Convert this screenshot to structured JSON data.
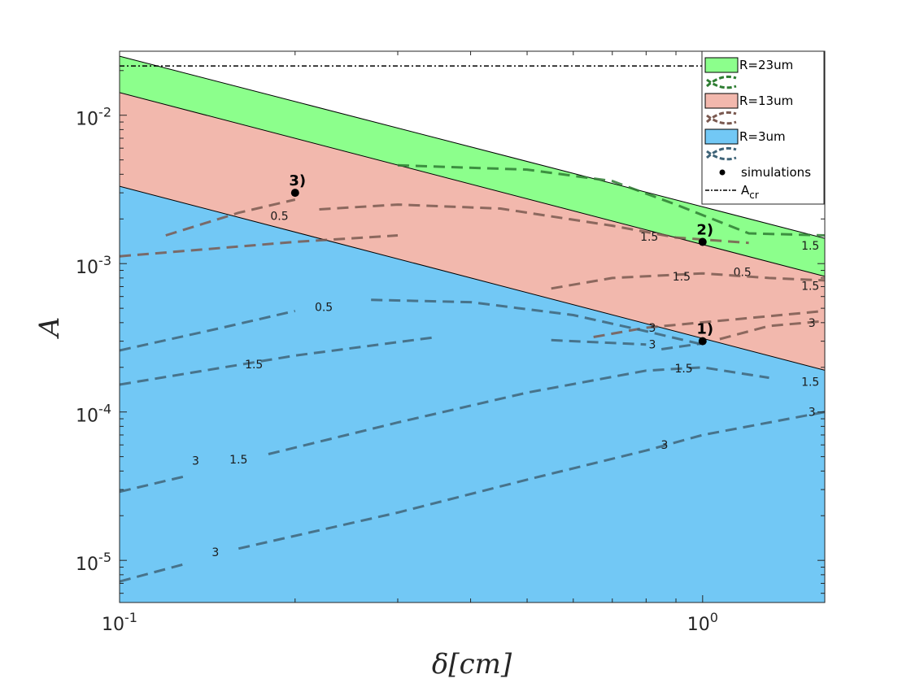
{
  "chart_data": {
    "type": "area",
    "xlabel": "δ[cm]",
    "ylabel": "A",
    "xscale": "log",
    "yscale": "log",
    "xlim": [
      0.1,
      1.62
    ],
    "ylim": [
      5.2e-06,
      0.027
    ],
    "x_ticks": [
      {
        "value": 0.1,
        "base": "10",
        "exp": "-1"
      },
      {
        "value": 1,
        "base": "10",
        "exp": "0"
      }
    ],
    "y_ticks": [
      {
        "value": 1e-05,
        "base": "10",
        "exp": "-5"
      },
      {
        "value": 0.0001,
        "base": "10",
        "exp": "-4"
      },
      {
        "value": 0.001,
        "base": "10",
        "exp": "-3"
      },
      {
        "value": 0.01,
        "base": "10",
        "exp": "-2"
      }
    ],
    "regions": [
      {
        "name": "R=23um",
        "color": "#8cff8c",
        "upper": [
          [
            0.1,
            0.025
          ],
          [
            1.62,
            0.00148
          ]
        ],
        "lower": [
          [
            0.1,
            0.0142
          ],
          [
            1.62,
            0.00082
          ]
        ]
      },
      {
        "name": "R=13um",
        "color": "#f2b8ad",
        "upper": [
          [
            0.1,
            0.0142
          ],
          [
            1.62,
            0.00082
          ]
        ],
        "lower": [
          [
            0.1,
            0.00332
          ],
          [
            1.62,
            0.000191
          ]
        ]
      },
      {
        "name": "R=3um",
        "color": "#72c8f5",
        "upper": [
          [
            0.1,
            0.00332
          ],
          [
            1.62,
            0.000191
          ]
        ],
        "lower": [
          [
            0.1,
            5.2e-06
          ],
          [
            1.62,
            5.2e-06
          ]
        ]
      }
    ],
    "critical_line": {
      "name": "A_cr",
      "value": 0.0215
    },
    "contour_sets": [
      {
        "color": "#2e7d32",
        "lines": [
          {
            "label": "1.5",
            "points": [
              [
                0.3,
                0.0046
              ],
              [
                0.5,
                0.0043
              ],
              [
                0.7,
                0.0036
              ],
              [
                0.9,
                0.0025
              ],
              [
                1.2,
                0.0016
              ],
              [
                1.62,
                0.00155
              ]
            ]
          }
        ],
        "labels": [
          {
            "text": "1.5",
            "x": 1.53,
            "y": 0.00132
          },
          {
            "text": "0.5",
            "x": 1.17,
            "y": 0.00088
          },
          {
            "text": "1.5",
            "x": 0.81,
            "y": 0.00152
          }
        ]
      },
      {
        "color": "#7a5950",
        "lines": [
          {
            "label": "0.5",
            "points": [
              [
                0.12,
                0.00155
              ],
              [
                0.16,
                0.0022
              ],
              [
                0.2,
                0.0027
              ]
            ]
          },
          {
            "label": "0.5",
            "points": [
              [
                0.22,
                0.00232
              ],
              [
                0.3,
                0.0025
              ],
              [
                0.45,
                0.00235
              ],
              [
                0.7,
                0.0018
              ],
              [
                0.9,
                0.0015
              ],
              [
                1.2,
                0.00138
              ]
            ]
          },
          {
            "label": "1.5",
            "points": [
              [
                0.1,
                0.00112
              ],
              [
                0.2,
                0.0014
              ],
              [
                0.3,
                0.00155
              ]
            ]
          },
          {
            "label": "1.5",
            "points": [
              [
                0.55,
                0.00068
              ],
              [
                0.7,
                0.0008
              ],
              [
                1.0,
                0.00086
              ],
              [
                1.3,
                0.0008
              ],
              [
                1.62,
                0.00077
              ]
            ]
          },
          {
            "label": "3",
            "points": [
              [
                0.65,
                0.00032
              ],
              [
                0.8,
                0.00037
              ],
              [
                1.62,
                0.00048
              ]
            ]
          },
          {
            "label": "3",
            "points": [
              [
                1.07,
                0.00031
              ],
              [
                1.3,
                0.00038
              ],
              [
                1.62,
                0.00041
              ]
            ]
          }
        ],
        "labels": [
          {
            "text": "0.5",
            "x": 0.188,
            "y": 0.0021
          },
          {
            "text": "1.5",
            "x": 0.92,
            "y": 0.00082
          },
          {
            "text": "3",
            "x": 0.82,
            "y": 0.00037
          },
          {
            "text": "1.5",
            "x": 1.53,
            "y": 0.00071
          },
          {
            "text": "3",
            "x": 1.54,
            "y": 0.0004
          }
        ]
      },
      {
        "color": "#3f6478",
        "lines": [
          {
            "label": "0.5",
            "points": [
              [
                0.1,
                0.00026
              ],
              [
                0.15,
                0.00037
              ],
              [
                0.2,
                0.00048
              ]
            ]
          },
          {
            "label": "0.5",
            "points": [
              [
                0.27,
                0.00057
              ],
              [
                0.4,
                0.00055
              ],
              [
                0.6,
                0.00045
              ],
              [
                0.8,
                0.00035
              ],
              [
                1.0,
                0.000285
              ]
            ]
          },
          {
            "label": "1.5",
            "points": [
              [
                0.1,
                0.000153
              ],
              [
                0.2,
                0.00024
              ],
              [
                0.35,
                0.00032
              ]
            ]
          },
          {
            "label": "1.5",
            "points": [
              [
                0.1,
                2.9e-05
              ],
              [
                0.13,
                3.7e-05
              ]
            ]
          },
          {
            "label": "1.5",
            "points": [
              [
                0.18,
                5.2e-05
              ],
              [
                0.3,
                8.5e-05
              ],
              [
                0.5,
                0.000135
              ],
              [
                0.8,
                0.00019
              ],
              [
                1.0,
                0.0002
              ],
              [
                1.3,
                0.00017
              ]
            ]
          },
          {
            "label": "3",
            "points": [
              [
                0.1,
                7.2e-06
              ],
              [
                0.13,
                9.5e-06
              ]
            ]
          },
          {
            "label": "3",
            "points": [
              [
                0.16,
                1.2e-05
              ],
              [
                0.3,
                2.1e-05
              ],
              [
                0.5,
                3.5e-05
              ],
              [
                0.8,
                5.5e-05
              ],
              [
                1.0,
                7e-05
              ],
              [
                1.62,
                0.0001
              ]
            ]
          },
          {
            "label": "3",
            "points": [
              [
                0.85,
                0.000265
              ],
              [
                1.0,
                0.00029
              ]
            ]
          },
          {
            "label": "1.5",
            "points": [
              [
                0.55,
                0.000305
              ],
              [
                0.8,
                0.000285
              ]
            ]
          }
        ],
        "labels": [
          {
            "text": "0.5",
            "x": 0.224,
            "y": 0.00051
          },
          {
            "text": "1.5",
            "x": 0.17,
            "y": 0.00021
          },
          {
            "text": "1.5",
            "x": 0.928,
            "y": 0.000197
          },
          {
            "text": "1.5",
            "x": 1.53,
            "y": 0.00016
          },
          {
            "text": "3",
            "x": 0.82,
            "y": 0.000285
          },
          {
            "text": "1.5",
            "x": 0.16,
            "y": 4.8e-05
          },
          {
            "text": "3",
            "x": 0.135,
            "y": 4.7e-05
          },
          {
            "text": "3",
            "x": 0.86,
            "y": 6e-05
          },
          {
            "text": "3",
            "x": 1.54,
            "y": 0.0001
          },
          {
            "text": "3",
            "x": 0.146,
            "y": 1.14e-05
          }
        ]
      }
    ],
    "simulations": [
      {
        "label": "1)",
        "x": 1.0,
        "y": 0.0003
      },
      {
        "label": "2)",
        "x": 1.0,
        "y": 0.0014
      },
      {
        "label": "3)",
        "x": 0.2,
        "y": 0.003
      }
    ],
    "legend": {
      "placement": "top-right",
      "items": [
        {
          "label": "R=23um",
          "kind": "patch",
          "color": "#8cff8c"
        },
        {
          "label": "",
          "kind": "contour-icon",
          "color": "#2e7d32"
        },
        {
          "label": "R=13um",
          "kind": "patch",
          "color": "#f2b8ad"
        },
        {
          "label": "",
          "kind": "contour-icon",
          "color": "#7a5950"
        },
        {
          "label": "R=3um",
          "kind": "patch",
          "color": "#72c8f5"
        },
        {
          "label": "",
          "kind": "contour-icon",
          "color": "#3f6478"
        },
        {
          "label": "simulations",
          "kind": "dot",
          "color": "#000000"
        },
        {
          "label": "A",
          "sub": "cr",
          "kind": "dashdot",
          "color": "#000000"
        }
      ]
    }
  }
}
